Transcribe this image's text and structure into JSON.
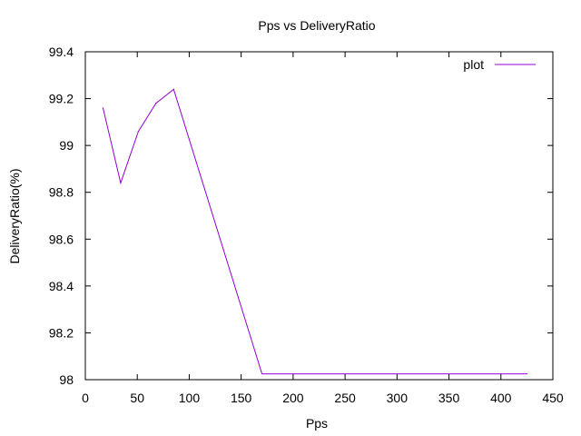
{
  "chart_data": {
    "type": "line",
    "title": "Pps vs DeliveryRatio",
    "xlabel": "Pps",
    "ylabel": "DeliveryRatio(%)",
    "xlim": [
      0,
      450
    ],
    "ylim": [
      98,
      99.4
    ],
    "xticks": [
      0,
      50,
      100,
      150,
      200,
      250,
      300,
      350,
      400,
      450
    ],
    "yticks": [
      98,
      98.2,
      98.4,
      98.6,
      98.8,
      99,
      99.2,
      99.4
    ],
    "grid": false,
    "legend_position": "top-right",
    "series": [
      {
        "name": "plot",
        "color": "#9400d3",
        "x": [
          17,
          34,
          51,
          68,
          85,
          170,
          425
        ],
        "y": [
          99.16,
          98.84,
          99.06,
          99.18,
          99.24,
          98.025,
          98.025
        ]
      }
    ]
  }
}
